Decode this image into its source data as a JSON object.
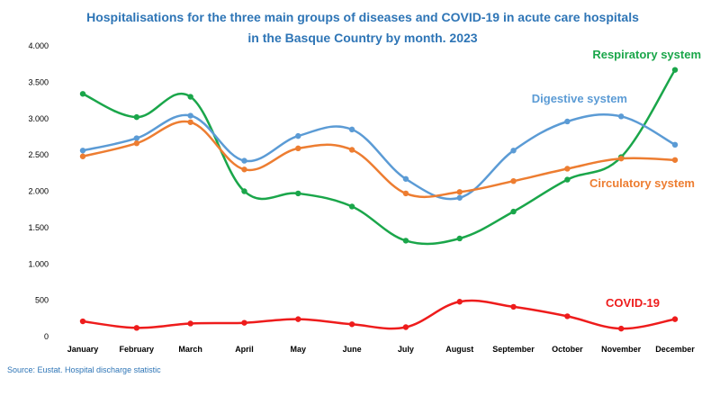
{
  "chart_data": {
    "type": "line",
    "title_lines": [
      "Hospitalisations for the three main groups of diseases and COVID-19 in acute care hospitals",
      "in the Basque Country by month. 2023"
    ],
    "categories": [
      "January",
      "February",
      "March",
      "April",
      "May",
      "June",
      "July",
      "August",
      "September",
      "October",
      "November",
      "December"
    ],
    "ylim": [
      0,
      4000
    ],
    "yticks": [
      0,
      500,
      1000,
      1500,
      2000,
      2500,
      3000,
      3500,
      4000
    ],
    "ytick_labels": [
      "0",
      "500",
      "1.000",
      "1.500",
      "2.000",
      "2.500",
      "3.000",
      "3.500",
      "4.000"
    ],
    "series": [
      {
        "name": "Respiratory system",
        "color": "#1aa64a",
        "values": [
          3340,
          3020,
          3300,
          2000,
          1970,
          1790,
          1320,
          1350,
          1720,
          2160,
          2470,
          3670
        ]
      },
      {
        "name": "Digestive system",
        "color": "#5b9bd5",
        "values": [
          2560,
          2730,
          3040,
          2420,
          2760,
          2850,
          2170,
          1910,
          2560,
          2960,
          3030,
          2640
        ]
      },
      {
        "name": "Circulatory system",
        "color": "#ed7d31",
        "values": [
          2480,
          2660,
          2950,
          2300,
          2590,
          2570,
          1970,
          1990,
          2140,
          2310,
          2450,
          2430
        ]
      },
      {
        "name": "COVID-19",
        "color": "#ee1c1c",
        "values": [
          210,
          120,
          180,
          190,
          240,
          170,
          130,
          480,
          410,
          280,
          110,
          240
        ]
      }
    ],
    "source": "Source: Eustat. Hospital discharge statistic",
    "grid": false,
    "legend": "inline labels near series ends"
  }
}
